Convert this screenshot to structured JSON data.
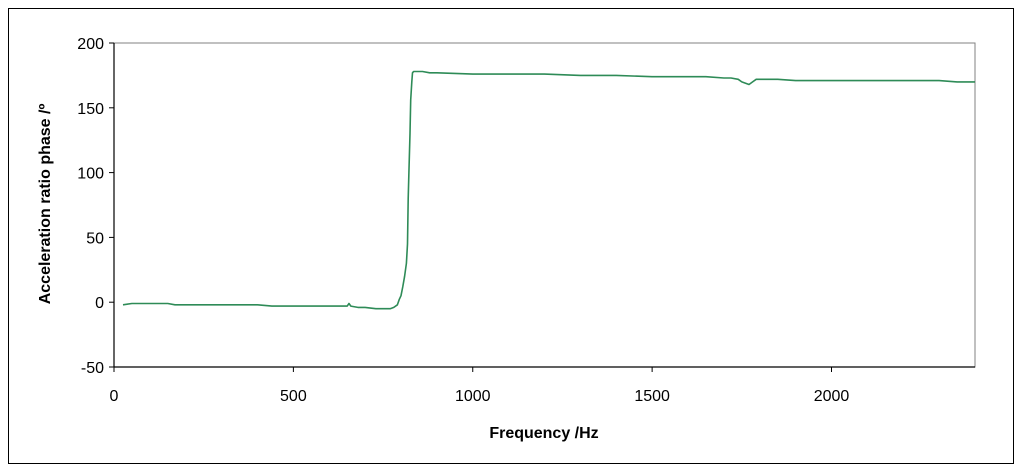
{
  "chart_data": {
    "type": "line",
    "title": "",
    "xlabel": "Frequency /Hz",
    "ylabel": "Acceleration ratio phase /º",
    "xlim": [
      0,
      2400
    ],
    "ylim": [
      -50,
      200
    ],
    "xticks": [
      0,
      500,
      1000,
      1500,
      2000
    ],
    "yticks": [
      -50,
      0,
      50,
      100,
      150,
      200
    ],
    "grid": false,
    "legend": "none",
    "colors": {
      "line": "#2e8b57",
      "plot_border": "#808080",
      "axis": "#000000"
    },
    "series": [
      {
        "values_x": [
          25,
          50,
          60,
          80,
          100,
          150,
          170,
          180,
          200,
          300,
          400,
          440,
          500,
          600,
          620,
          640,
          650,
          655,
          660,
          680,
          700,
          730,
          760,
          770,
          780,
          790,
          795,
          800,
          805,
          810,
          815,
          818,
          820,
          822,
          825,
          827,
          830,
          832,
          835,
          840,
          860,
          880,
          900,
          1000,
          1100,
          1200,
          1300,
          1400,
          1500,
          1600,
          1650,
          1700,
          1720,
          1740,
          1750,
          1770,
          1780,
          1790,
          1800,
          1850,
          1900,
          2000,
          2100,
          2150,
          2200,
          2250,
          2300,
          2350,
          2400
        ],
        "values_y": [
          -2,
          -1,
          -1,
          -1,
          -1,
          -1,
          -2,
          -2,
          -2,
          -2,
          -2,
          -3,
          -3,
          -3,
          -3,
          -3,
          -3,
          -1,
          -3,
          -4,
          -4,
          -5,
          -5,
          -5,
          -4,
          -2,
          2,
          5,
          12,
          20,
          30,
          45,
          80,
          100,
          130,
          156,
          170,
          177,
          178,
          178,
          178,
          177,
          177,
          176,
          176,
          176,
          175,
          175,
          174,
          174,
          174,
          173,
          173,
          172,
          170,
          168,
          170,
          172,
          172,
          172,
          171,
          171,
          171,
          171,
          171,
          171,
          171,
          170,
          170
        ]
      }
    ]
  }
}
